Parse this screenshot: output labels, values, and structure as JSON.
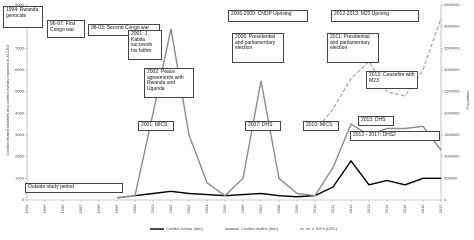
{
  "chart_data": {
    "type": "line",
    "y_label": "Conflict related fatalities and conflict events reported in ACLED",
    "y2_label": "Population",
    "x": [
      1994,
      1995,
      1996,
      1997,
      1998,
      1999,
      2000,
      2001,
      2002,
      2003,
      2004,
      2005,
      2006,
      2007,
      2008,
      2009,
      2010,
      2011,
      2012,
      2013,
      2014,
      2015,
      2016,
      2017
    ],
    "xticks": [
      1994,
      1995,
      1996,
      1997,
      1998,
      1999,
      2000,
      2001,
      2002,
      2003,
      2004,
      2005,
      2006,
      2007,
      2008,
      2009,
      2010,
      2011,
      2012,
      2013,
      2014,
      2015,
      2016,
      2017
    ],
    "xlim": [
      1994,
      2017
    ],
    "ylim": [
      0,
      9000
    ],
    "yticks": [
      0,
      1000,
      2000,
      3000,
      4000,
      5000,
      6000,
      7000,
      8000,
      9000
    ],
    "y2lim": [
      0,
      4500000
    ],
    "y2ticks": [
      0,
      500000,
      1000000,
      1500000,
      2000000,
      2500000,
      3000000,
      3500000,
      4000000,
      4500000
    ],
    "legend": "bottom",
    "series": [
      {
        "name": "Conflict events (Ituri)",
        "color": "#000000",
        "style": "solid",
        "values": [
          null,
          null,
          null,
          null,
          null,
          100,
          200,
          300,
          400,
          300,
          250,
          200,
          250,
          300,
          200,
          150,
          200,
          600,
          1800,
          700,
          900,
          700,
          1000,
          1000
        ]
      },
      {
        "name": "Conflict deaths (Ituri)",
        "color": "#8c8c8c",
        "style": "solid",
        "values": [
          null,
          null,
          null,
          null,
          null,
          100,
          200,
          4000,
          7900,
          3000,
          800,
          200,
          1000,
          5500,
          1000,
          300,
          200,
          1500,
          3500,
          3000,
          3300,
          3300,
          3400,
          2300
        ]
      },
      {
        "name": "IDPs (DRC)",
        "color": "#a6a6a6",
        "style": "dashed",
        "axis": "y2",
        "values": [
          null,
          null,
          null,
          null,
          null,
          null,
          null,
          null,
          null,
          null,
          null,
          null,
          null,
          null,
          null,
          null,
          1600000,
          2100000,
          2800000,
          3200000,
          2500000,
          2400000,
          3000000,
          4200000
        ]
      }
    ],
    "annotations": [
      "1994: Rwanda genocide",
      "96-97: First Congo war",
      "98-03: Second Congo war",
      "2006-2009: CNDP Uprising",
      "2012-2013: M23 Uprsing",
      "2001: J. Kabila succeeds his father",
      "2002: Peace agreements with Rwanda and Uganda",
      "2006: Presidential and parliamentary election",
      "2011: Presidential and parliamentary election",
      "2013: Ceasefire with M23",
      "2001: MICS",
      "2007: DHS",
      "2010: MICS",
      "2013: DHS",
      "2012 - 2017: DHS2",
      "Outside study period"
    ]
  }
}
